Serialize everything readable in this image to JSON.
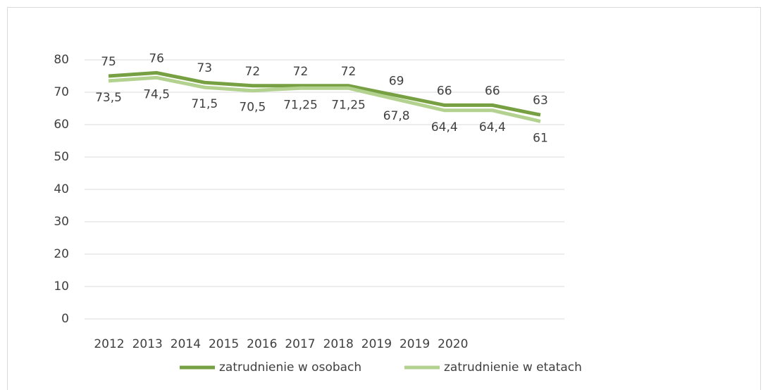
{
  "chart_data": {
    "type": "line",
    "categories": [
      "2012",
      "2013",
      "2014",
      "2015",
      "2016",
      "2017",
      "2018",
      "2019",
      "2019",
      "2020"
    ],
    "series": [
      {
        "name": "zatrudnienie w osobach",
        "color": "#77a043",
        "values": [
          75,
          76,
          73,
          72,
          72,
          72,
          69,
          66,
          66,
          63
        ]
      },
      {
        "name": "zatrudnienie w etatach",
        "color": "#b4d28f",
        "values": [
          73.5,
          74.5,
          71.5,
          70.5,
          71.25,
          71.25,
          67.8,
          64.4,
          64.4,
          61
        ],
        "value_labels": [
          "73,5",
          "74,5",
          "71,5",
          "70,5",
          "71,25",
          "71,25",
          "67,8",
          "64,4",
          "64,4",
          "61"
        ]
      }
    ],
    "ylim": [
      0,
      80
    ],
    "yticks": [
      0,
      10,
      20,
      30,
      40,
      50,
      60,
      70,
      80
    ],
    "grid": true,
    "legend": "bottom"
  }
}
